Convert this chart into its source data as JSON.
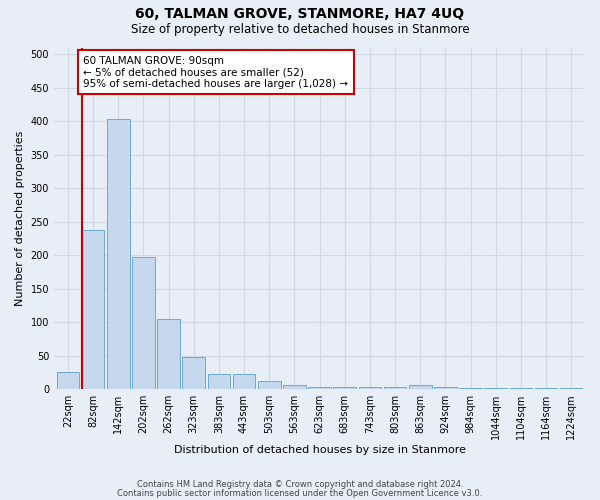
{
  "title": "60, TALMAN GROVE, STANMORE, HA7 4UQ",
  "subtitle": "Size of property relative to detached houses in Stanmore",
  "xlabel": "Distribution of detached houses by size in Stanmore",
  "ylabel": "Number of detached properties",
  "bar_labels": [
    "22sqm",
    "82sqm",
    "142sqm",
    "202sqm",
    "262sqm",
    "323sqm",
    "383sqm",
    "443sqm",
    "503sqm",
    "563sqm",
    "623sqm",
    "683sqm",
    "743sqm",
    "803sqm",
    "863sqm",
    "924sqm",
    "984sqm",
    "1044sqm",
    "1104sqm",
    "1164sqm",
    "1224sqm"
  ],
  "bar_values": [
    25,
    238,
    403,
    197,
    105,
    48,
    22,
    22,
    12,
    6,
    3,
    3,
    3,
    3,
    6,
    3,
    2,
    1,
    1,
    1,
    1
  ],
  "bar_color": "#c5d8ee",
  "bar_edge_color": "#6aaad4",
  "annotation_text": "60 TALMAN GROVE: 90sqm\n← 5% of detached houses are smaller (52)\n95% of semi-detached houses are larger (1,028) →",
  "annotation_box_color": "#ffffff",
  "annotation_box_edge_color": "#cc0000",
  "red_line_color": "#cc0000",
  "ylim": [
    0,
    510
  ],
  "yticks": [
    0,
    50,
    100,
    150,
    200,
    250,
    300,
    350,
    400,
    450,
    500
  ],
  "grid_color": "#d0d8e4",
  "background_color": "#e8eef5",
  "footer_line1": "Contains HM Land Registry data © Crown copyright and database right 2024.",
  "footer_line2": "Contains public sector information licensed under the Open Government Licence v3.0.",
  "title_fontsize": 10,
  "subtitle_fontsize": 8.5,
  "axis_label_fontsize": 8,
  "tick_fontsize": 7,
  "annotation_fontsize": 7.5,
  "footer_fontsize": 6
}
